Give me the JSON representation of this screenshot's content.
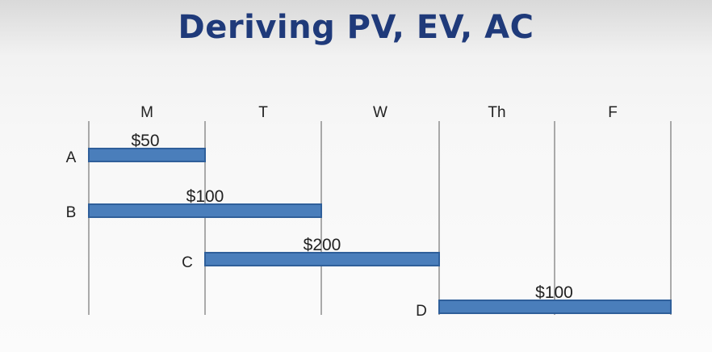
{
  "slide": {
    "title": "Deriving PV, EV, AC"
  },
  "schedule": {
    "days": [
      "M",
      "T",
      "W",
      "Th",
      "F"
    ],
    "tasks": [
      {
        "label": "A",
        "cost": "$50",
        "start_day": 0,
        "end_day": 1
      },
      {
        "label": "B",
        "cost": "$100",
        "start_day": 0,
        "end_day": 2
      },
      {
        "label": "C",
        "cost": "$200",
        "start_day": 1,
        "end_day": 3
      },
      {
        "label": "D",
        "cost": "$100",
        "start_day": 3,
        "end_day": 5
      }
    ]
  },
  "colors": {
    "title": "#1f3a7a",
    "bar_fill": "#4a7ebb",
    "bar_stroke": "#2f5f9a",
    "gridline": "#7f7f7f",
    "text": "#222222"
  }
}
